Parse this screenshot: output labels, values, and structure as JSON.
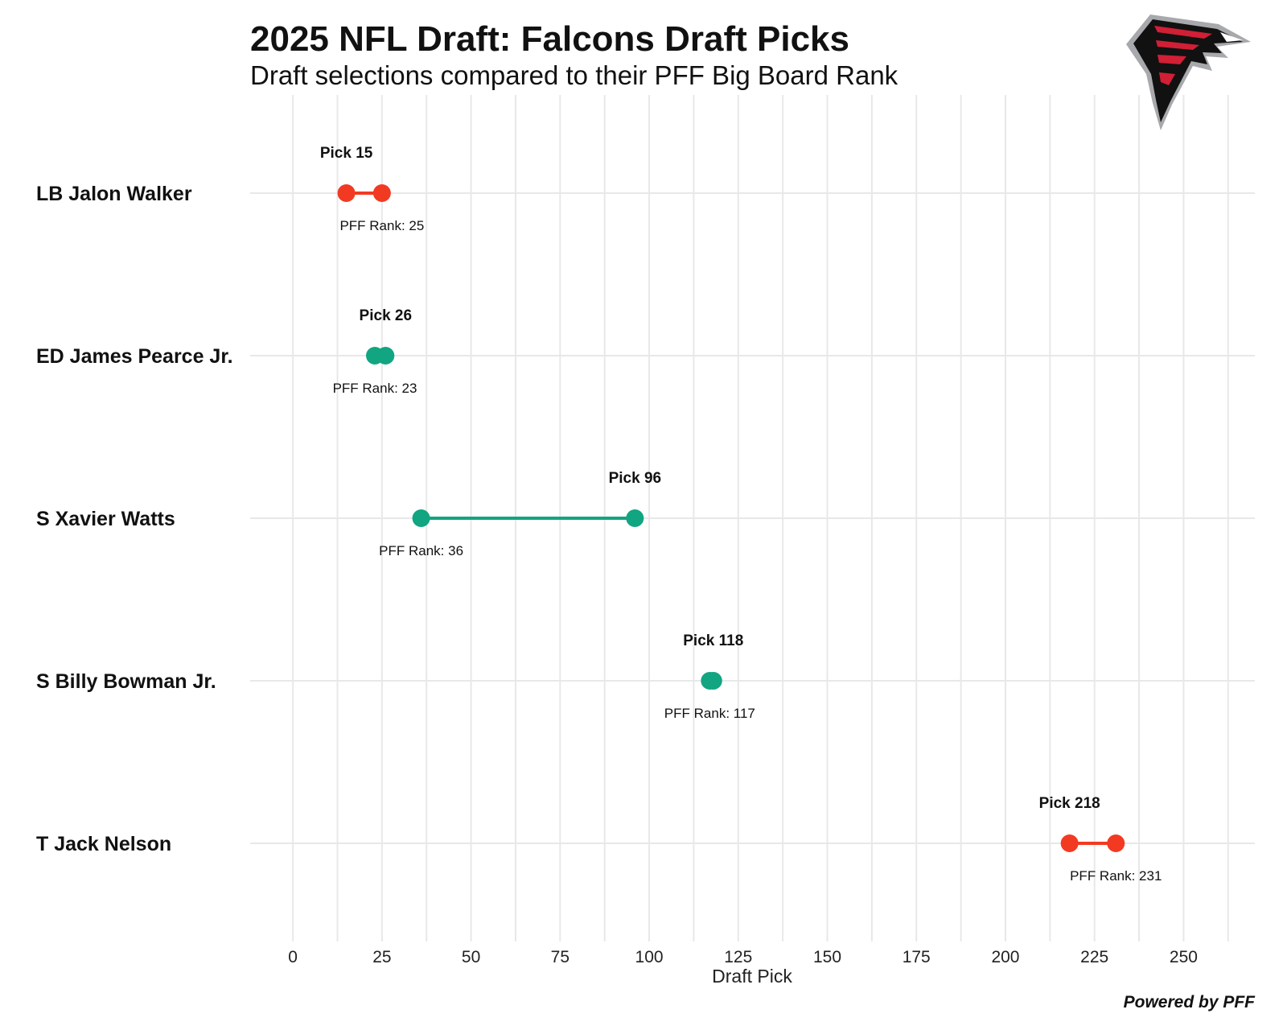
{
  "header": {
    "title": "2025 NFL Draft: Falcons Draft Picks",
    "subtitle": "Draft selections compared to their PFF Big Board Rank"
  },
  "logo": {
    "icon": "falcons-logo-icon"
  },
  "credit": "Powered by PFF",
  "colors": {
    "reach": "#f23a22",
    "value": "#12a581",
    "grid": "#e8e8e8"
  },
  "chart_data": {
    "type": "dumbbell",
    "xlabel": "Draft Pick",
    "xlim": [
      -12,
      270
    ],
    "xticks": [
      0,
      25,
      50,
      75,
      100,
      125,
      150,
      175,
      200,
      225,
      250
    ],
    "xtick_labels": [
      "0",
      "25",
      "50",
      "75",
      "100",
      "125",
      "150",
      "175",
      "200",
      "225",
      "250"
    ],
    "grid": true,
    "players": [
      {
        "name": "LB Jalon Walker",
        "pick": 15,
        "pff_rank": 25,
        "pick_label": "Pick 15",
        "rank_label": "PFF Rank: 25",
        "color": "#f23a22"
      },
      {
        "name": "ED James Pearce Jr.",
        "pick": 26,
        "pff_rank": 23,
        "pick_label": "Pick 26",
        "rank_label": "PFF Rank: 23",
        "color": "#12a581"
      },
      {
        "name": "S Xavier Watts",
        "pick": 96,
        "pff_rank": 36,
        "pick_label": "Pick 96",
        "rank_label": "PFF Rank: 36",
        "color": "#12a581"
      },
      {
        "name": "S Billy Bowman Jr.",
        "pick": 118,
        "pff_rank": 117,
        "pick_label": "Pick 118",
        "rank_label": "PFF Rank: 117",
        "color": "#12a581"
      },
      {
        "name": "T Jack Nelson",
        "pick": 218,
        "pff_rank": 231,
        "pick_label": "Pick 218",
        "rank_label": "PFF Rank: 231",
        "color": "#f23a22"
      }
    ]
  }
}
